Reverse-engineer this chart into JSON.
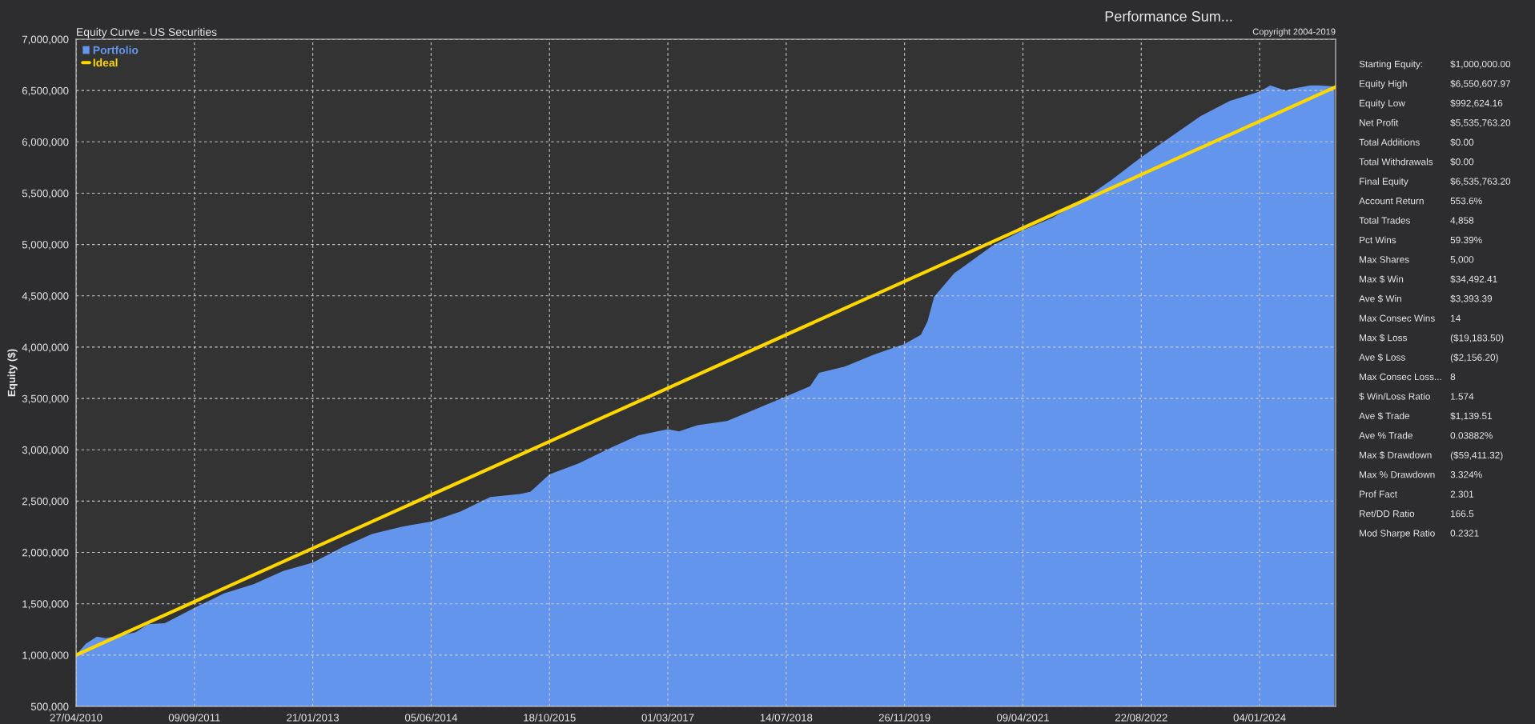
{
  "chart_data": [
    {
      "type": "area",
      "title": "Equity Curve - US Securities",
      "ylabel": "Equity ($)",
      "annotations": [
        "Copyright 2004-2019"
      ],
      "series": [
        {
          "name": "Portfolio",
          "type": "area",
          "color": "#6495ed",
          "x": [
            "2010-04-27",
            "2010-06-07",
            "2010-07-24",
            "2010-08-30",
            "2011-01-02",
            "2011-02-25",
            "2011-05-07",
            "2011-09-09",
            "2012-01-12",
            "2012-05-16",
            "2012-09-18",
            "2013-01-21",
            "2013-05-26",
            "2013-09-28",
            "2014-01-31",
            "2014-06-05",
            "2014-10-08",
            "2015-02-10",
            "2015-06-15",
            "2015-07-29",
            "2015-10-18",
            "2016-02-20",
            "2016-06-24",
            "2016-10-27",
            "2017-03-01",
            "2017-04-17",
            "2017-07-04",
            "2017-11-06",
            "2018-03-11",
            "2018-07-14",
            "2018-10-23",
            "2018-11-30",
            "2019-03-18",
            "2019-07-22",
            "2019-11-26",
            "2020-02-03",
            "2020-03-02",
            "2020-03-30",
            "2020-06-23",
            "2020-07-30",
            "2020-12-02",
            "2021-04-09",
            "2021-08-12",
            "2021-12-15",
            "2022-04-19",
            "2022-08-22",
            "2022-12-25",
            "2023-04-29",
            "2023-09-01",
            "2024-01-04",
            "2024-02-18",
            "2024-04-23",
            "2024-05-08",
            "2024-08-05",
            "2024-09-10",
            "2024-11-15"
          ],
          "values": [
            1000000,
            1110000,
            1180000,
            1165000,
            1220000,
            1300000,
            1310000,
            1460000,
            1600000,
            1690000,
            1820000,
            1900000,
            2050000,
            2180000,
            2250000,
            2300000,
            2400000,
            2540000,
            2570000,
            2590000,
            2760000,
            2870000,
            3010000,
            3140000,
            3200000,
            3180000,
            3240000,
            3280000,
            3400000,
            3520000,
            3620000,
            3750000,
            3810000,
            3930000,
            4030000,
            4120000,
            4250000,
            4490000,
            4720000,
            4780000,
            4990000,
            5140000,
            5260000,
            5430000,
            5630000,
            5850000,
            6050000,
            6250000,
            6400000,
            6490000,
            6550000,
            6500000,
            6510000,
            6550000,
            6550000,
            6540000
          ]
        },
        {
          "name": "Ideal",
          "type": "line",
          "color": "#ffd700",
          "x": [
            "2010-04-27",
            "2024-11-20"
          ],
          "values": [
            1000000,
            6535000
          ]
        }
      ],
      "xlim": [
        "2010-04-27",
        "2024-11-20"
      ],
      "xticks": [
        {
          "value": "2010-04-27",
          "label": "27/04/2010"
        },
        {
          "value": "2011-09-09",
          "label": "09/09/2011"
        },
        {
          "value": "2013-01-21",
          "label": "21/01/2013"
        },
        {
          "value": "2014-06-05",
          "label": "05/06/2014"
        },
        {
          "value": "2015-10-18",
          "label": "18/10/2015"
        },
        {
          "value": "2017-03-01",
          "label": "01/03/2017"
        },
        {
          "value": "2018-07-14",
          "label": "14/07/2018"
        },
        {
          "value": "2019-11-26",
          "label": "26/11/2019"
        },
        {
          "value": "2021-04-09",
          "label": "09/04/2021"
        },
        {
          "value": "2022-08-22",
          "label": "22/08/2022"
        },
        {
          "value": "2024-01-04",
          "label": "04/01/2024"
        }
      ],
      "ylim": [
        500000,
        7000000
      ],
      "yticks": [
        {
          "value": 500000,
          "label": "500,000"
        },
        {
          "value": 1000000,
          "label": "1,000,000"
        },
        {
          "value": 1500000,
          "label": "1,500,000"
        },
        {
          "value": 2000000,
          "label": "2,000,000"
        },
        {
          "value": 2500000,
          "label": "2,500,000"
        },
        {
          "value": 3000000,
          "label": "3,000,000"
        },
        {
          "value": 3500000,
          "label": "3,500,000"
        },
        {
          "value": 4000000,
          "label": "4,000,000"
        },
        {
          "value": 4500000,
          "label": "4,500,000"
        },
        {
          "value": 5000000,
          "label": "5,000,000"
        },
        {
          "value": 5500000,
          "label": "5,500,000"
        },
        {
          "value": 6000000,
          "label": "6,000,000"
        },
        {
          "value": 6500000,
          "label": "6,500,000"
        },
        {
          "value": 7000000,
          "label": "7,000,000"
        }
      ],
      "grid": true,
      "legend": "top left"
    },
    {
      "type": "other",
      "title": "Performance Sum...",
      "annotations": [
        "Starting Equity:",
        "$1,000,000.00",
        "Equity High",
        "$6,550,607.97",
        "Equity Low",
        "$992,624.16",
        "Net Profit",
        "$5,535,763.20",
        "Total Additions",
        "$0.00",
        "Total Withdrawals",
        "$0.00",
        "Final Equity",
        "$6,535,763.20",
        "Account Return",
        "553.6%",
        "Total Trades",
        "4,858",
        "Pct Wins",
        "59.39%",
        "Max Shares",
        "5,000",
        "Max $ Win",
        "$34,492.41",
        "Ave $ Win",
        "$3,393.39",
        "Max Consec Wins",
        "14",
        "Max $ Loss",
        "($19,183.50)",
        "Ave $ Loss",
        "($2,156.20)",
        "Max Consec Loss...",
        "8",
        "$ Win/Loss Ratio",
        "1.574",
        "Ave $ Trade",
        "$1,139.51",
        "Ave % Trade",
        "0.03882%",
        "Max $ Drawdown",
        "($59,411.32)",
        "Max % Drawdown",
        "3.324%",
        "Prof Fact",
        "2.301",
        "Ret/DD Ratio",
        "166.5",
        "Mod Sharpe Ratio",
        "0.2321"
      ]
    }
  ]
}
